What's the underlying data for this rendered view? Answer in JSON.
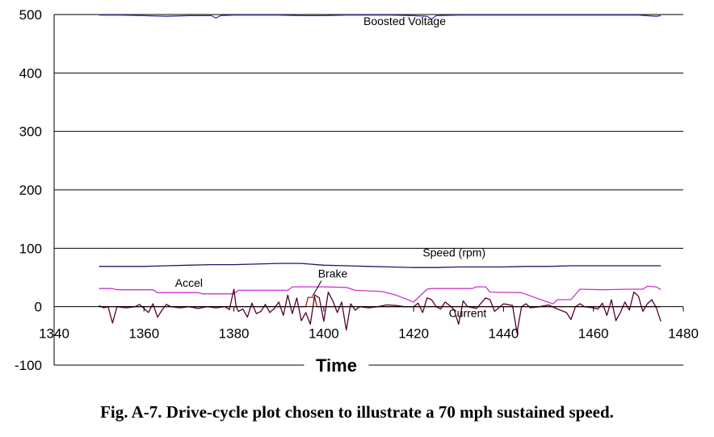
{
  "chart_data": {
    "type": "line",
    "title": "",
    "xlabel": "Time",
    "ylabel": "",
    "xlim": [
      1340,
      1480
    ],
    "ylim": [
      -100,
      500
    ],
    "x_ticks": [
      1340,
      1360,
      1380,
      1400,
      1420,
      1440,
      1460,
      1480
    ],
    "y_ticks": [
      -100,
      0,
      100,
      200,
      300,
      400,
      500
    ],
    "grid": "horizontal",
    "series": [
      {
        "name": "Boosted Voltage",
        "color": "#3a3aa8",
        "x": [
          1350,
          1355,
          1360,
          1365,
          1370,
          1375,
          1376,
          1377,
          1380,
          1385,
          1390,
          1395,
          1400,
          1405,
          1410,
          1415,
          1420,
          1423,
          1424,
          1425,
          1430,
          1435,
          1440,
          1445,
          1450,
          1455,
          1460,
          1465,
          1470,
          1474,
          1475
        ],
        "values": [
          499,
          499,
          498,
          497,
          498,
          498,
          494,
          498,
          499,
          499,
          499,
          498,
          498,
          499,
          499,
          499,
          498,
          497,
          492,
          498,
          499,
          499,
          499,
          499,
          499,
          499,
          499,
          499,
          499,
          497,
          498
        ]
      },
      {
        "name": "Speed (rpm)",
        "color": "#1a1a6e",
        "x": [
          1350,
          1355,
          1360,
          1365,
          1370,
          1375,
          1380,
          1385,
          1390,
          1395,
          1400,
          1405,
          1410,
          1415,
          1420,
          1425,
          1430,
          1435,
          1440,
          1445,
          1450,
          1455,
          1460,
          1465,
          1470,
          1475
        ],
        "values": [
          69,
          69,
          69,
          70,
          71,
          72,
          72,
          73,
          74,
          74,
          71,
          70,
          69,
          68,
          67,
          67,
          68,
          68,
          68,
          69,
          69,
          70,
          70,
          70,
          70,
          70
        ]
      },
      {
        "name": "Accel",
        "color": "#cc33cc",
        "x": [
          1350,
          1353,
          1354,
          1362,
          1363,
          1372,
          1373,
          1380,
          1381,
          1392,
          1393,
          1400,
          1405,
          1407,
          1413,
          1416,
          1420,
          1423,
          1424,
          1433,
          1434,
          1436,
          1437,
          1444,
          1449,
          1451,
          1452,
          1455,
          1457,
          1462,
          1468,
          1471,
          1472,
          1474,
          1475
        ],
        "values": [
          31,
          31,
          29,
          29,
          24,
          24,
          22,
          22,
          28,
          28,
          34,
          34,
          33,
          28,
          26,
          20,
          8,
          30,
          31,
          31,
          34,
          34,
          25,
          24,
          10,
          5,
          12,
          12,
          30,
          29,
          30,
          30,
          35,
          34,
          29
        ]
      },
      {
        "name": "Brake",
        "color": "#dd0000",
        "x": [
          1350,
          1396,
          1396.5,
          1398,
          1398.5,
          1475
        ],
        "values": [
          0,
          0,
          16,
          16,
          0,
          0
        ]
      },
      {
        "name": "Current",
        "color": "#550033",
        "x": [
          1350,
          1351,
          1352,
          1353,
          1354,
          1356,
          1358,
          1359,
          1360,
          1361,
          1362,
          1363,
          1364,
          1365,
          1366,
          1368,
          1370,
          1372,
          1374,
          1376,
          1378,
          1379,
          1380,
          1380.5,
          1381,
          1382,
          1383,
          1384,
          1385,
          1386,
          1387,
          1388,
          1389,
          1390,
          1391,
          1392,
          1393,
          1394,
          1395,
          1396,
          1397,
          1398,
          1399,
          1400,
          1401,
          1402,
          1403,
          1404,
          1405,
          1406,
          1407,
          1408,
          1410,
          1412,
          1414,
          1416,
          1418,
          1420,
          1421,
          1422,
          1423,
          1424,
          1425,
          1426,
          1427,
          1428,
          1429,
          1430,
          1431,
          1432,
          1434,
          1436,
          1437,
          1438,
          1440,
          1442,
          1443,
          1444,
          1445,
          1446,
          1448,
          1450,
          1452,
          1454,
          1455,
          1456,
          1457,
          1458,
          1460,
          1461,
          1462,
          1463,
          1464,
          1465,
          1466,
          1467,
          1468,
          1469,
          1470,
          1471,
          1472,
          1473,
          1474,
          1475
        ],
        "values": [
          2,
          -2,
          0,
          -28,
          0,
          -2,
          0,
          4,
          -3,
          -10,
          5,
          -18,
          -6,
          4,
          0,
          -2,
          0,
          -3,
          0,
          -2,
          0,
          -5,
          30,
          0,
          -8,
          -4,
          -18,
          6,
          -12,
          -8,
          4,
          -10,
          -3,
          8,
          -15,
          20,
          -12,
          15,
          -24,
          -10,
          -30,
          20,
          15,
          -25,
          25,
          10,
          -10,
          8,
          -40,
          5,
          -6,
          0,
          -2,
          0,
          3,
          2,
          0,
          0,
          6,
          -10,
          15,
          12,
          0,
          -4,
          8,
          2,
          -5,
          -30,
          10,
          0,
          -3,
          15,
          12,
          -8,
          5,
          2,
          -45,
          0,
          5,
          -2,
          0,
          3,
          -4,
          -10,
          -22,
          0,
          5,
          0,
          -2,
          -4,
          6,
          -15,
          12,
          -24,
          -10,
          8,
          -6,
          25,
          18,
          -8,
          5,
          12,
          -2,
          -25
        ]
      }
    ],
    "annotations": [
      {
        "text": "Boosted Voltage",
        "x": 1418,
        "y": 482
      },
      {
        "text": "Speed (rpm)",
        "x": 1429,
        "y": 86
      },
      {
        "text": "Accel",
        "x": 1370,
        "y": 34
      },
      {
        "text": "Brake",
        "x": 1402,
        "y": 50
      },
      {
        "text": "Current",
        "x": 1432,
        "y": -18
      }
    ]
  },
  "caption": "Fig. A-7. Drive-cycle plot chosen to illustrate a 70 mph sustained speed."
}
